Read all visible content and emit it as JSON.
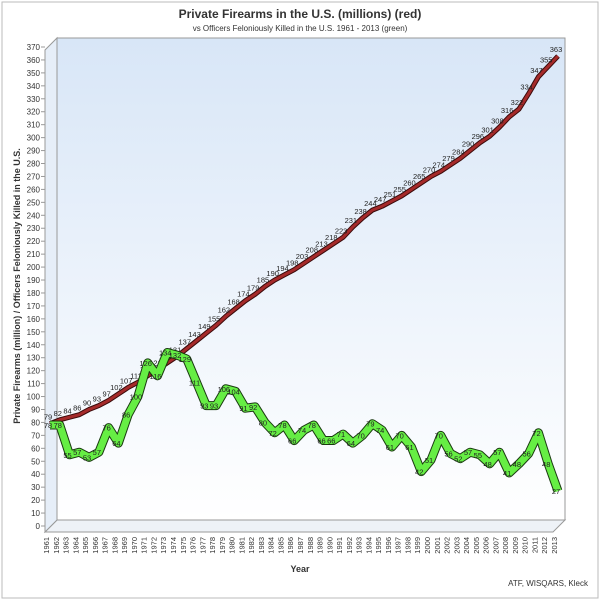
{
  "chart_data": {
    "type": "line",
    "title": "Private Firearms in the U.S. (millions) (red)",
    "subtitle": "vs Officers Feloniously Killed in the U.S. 1961 - 2013 (green)",
    "y_label": "Private Firearms (million) / Officers Feloniously Killed in the U.S.",
    "x_label": "Year",
    "source": "ATF, WISQARS, Kleck",
    "categories": [
      "1961",
      "1962",
      "1963",
      "1964",
      "1965",
      "1966",
      "1967",
      "1968",
      "1969",
      "1970",
      "1971",
      "1972",
      "1973",
      "1974",
      "1975",
      "1976",
      "1977",
      "1978",
      "1979",
      "1980",
      "1981",
      "1982",
      "1983",
      "1984",
      "1985",
      "1986",
      "1987",
      "1988",
      "1989",
      "1990",
      "1991",
      "1992",
      "1993",
      "1994",
      "1995",
      "1996",
      "1997",
      "1998",
      "1999",
      "2000",
      "2001",
      "2002",
      "2003",
      "2004",
      "2005",
      "2006",
      "2007",
      "2008",
      "2009",
      "2010",
      "2011",
      "2012",
      "2013"
    ],
    "series": [
      {
        "name": "Private Firearms",
        "color": "#a52a2a",
        "values": [
          79,
          82,
          84,
          86,
          90,
          93,
          97,
          102,
          107,
          111,
          116,
          121,
          126,
          131,
          137,
          143,
          149,
          155,
          162,
          168,
          174,
          179,
          185,
          190,
          194,
          198,
          203,
          208,
          213,
          218,
          223,
          231,
          238,
          244,
          247,
          251,
          255,
          260,
          265,
          270,
          274,
          279,
          284,
          290,
          296,
          301,
          308,
          316,
          322,
          334,
          347,
          355,
          363
        ]
      },
      {
        "name": "Officers Feloniously Killed",
        "color": "#66ee44",
        "values": [
          78,
          78,
          55,
          57,
          53,
          57,
          76,
          64,
          86,
          100,
          126,
          116,
          134,
          132,
          129,
          111,
          93,
          93,
          106,
          104,
          91,
          92,
          80,
          72,
          78,
          66,
          74,
          78,
          66,
          66,
          71,
          64,
          70,
          79,
          74,
          61,
          70,
          61,
          42,
          51,
          70,
          56,
          52,
          57,
          55,
          48,
          57,
          41,
          48,
          56,
          72,
          48,
          27
        ]
      }
    ],
    "ylim": [
      0,
      370
    ],
    "yticks": [
      0,
      10,
      20,
      30,
      40,
      50,
      60,
      70,
      80,
      90,
      100,
      110,
      120,
      130,
      140,
      150,
      160,
      170,
      180,
      190,
      200,
      210,
      220,
      230,
      240,
      250,
      260,
      270,
      280,
      290,
      300,
      310,
      320,
      330,
      340,
      350,
      360,
      370
    ],
    "grid": false
  }
}
